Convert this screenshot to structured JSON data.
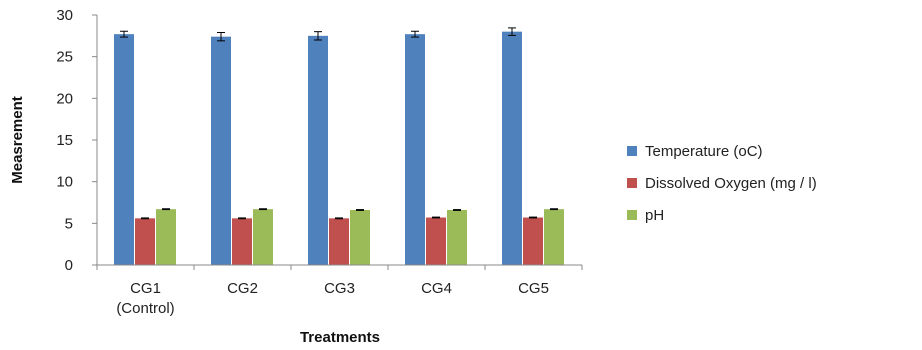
{
  "chart_data": {
    "type": "bar",
    "title": "",
    "xlabel": "Treatments",
    "ylabel": "Measrement",
    "ylim": [
      0,
      30
    ],
    "yticks": [
      0,
      5,
      10,
      15,
      20,
      25,
      30
    ],
    "grid": false,
    "legend_position": "right",
    "categories": [
      {
        "line1": "CG1",
        "line2": "(Control)"
      },
      {
        "line1": "CG2",
        "line2": ""
      },
      {
        "line1": "CG3",
        "line2": ""
      },
      {
        "line1": "CG4",
        "line2": ""
      },
      {
        "line1": "CG5",
        "line2": ""
      }
    ],
    "series": [
      {
        "name": "Temperature (oC)",
        "color": "#4f81bd",
        "values": [
          27.7,
          27.4,
          27.5,
          27.7,
          28.0
        ],
        "errors": [
          0.35,
          0.5,
          0.5,
          0.35,
          0.45
        ]
      },
      {
        "name": "Dissolved Oxygen (mg / l)",
        "color": "#c0504d",
        "values": [
          5.6,
          5.6,
          5.6,
          5.7,
          5.7
        ],
        "errors": [
          0.05,
          0.05,
          0.05,
          0.05,
          0.05
        ]
      },
      {
        "name": "pH",
        "color": "#9bbb59",
        "values": [
          6.7,
          6.7,
          6.6,
          6.6,
          6.7
        ],
        "errors": [
          0.05,
          0.05,
          0.05,
          0.05,
          0.05
        ]
      }
    ]
  }
}
